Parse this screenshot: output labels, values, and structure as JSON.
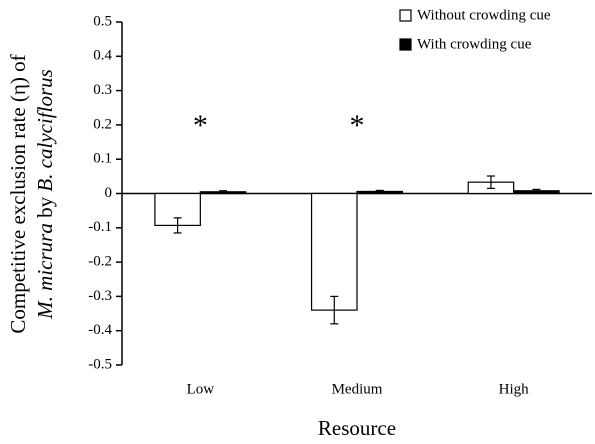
{
  "chart_data": {
    "type": "bar",
    "xlabel": "Resource",
    "ylabel": [
      [
        {
          "text": "Competitive exclusion rate (η) of",
          "italic": false
        }
      ],
      [
        {
          "text": "M. micrura",
          "italic": true
        },
        {
          "text": " by ",
          "italic": false
        },
        {
          "text": "B. calyciflorus",
          "italic": true
        }
      ]
    ],
    "categories": [
      "Low",
      "Medium",
      "High"
    ],
    "series": [
      {
        "name": "Without crowding cue",
        "color": "#ffffff",
        "values": [
          -0.093,
          -0.34,
          0.033
        ],
        "errors": [
          0.022,
          0.04,
          0.018
        ]
      },
      {
        "name": "With crowding cue",
        "color": "#000000",
        "values": [
          0.005,
          0.006,
          0.008
        ],
        "errors": [
          0.003,
          0.003,
          0.004
        ]
      }
    ],
    "significance": [
      "*",
      "*",
      null
    ],
    "ylim": [
      -0.5,
      0.5
    ],
    "yticks": [
      -0.5,
      -0.4,
      -0.3,
      -0.2,
      -0.1,
      0,
      0.1,
      0.2,
      0.3,
      0.4,
      0.5
    ],
    "grid": false,
    "legend": "top-right"
  }
}
